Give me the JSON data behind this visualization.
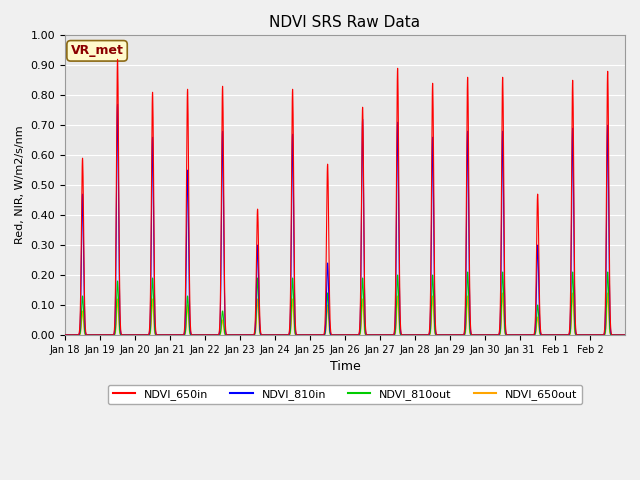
{
  "title": "NDVI SRS Raw Data",
  "xlabel": "Time",
  "ylabel": "Red, NIR, W/m2/s/nm",
  "ylim": [
    0.0,
    1.0
  ],
  "yticks": [
    0.0,
    0.1,
    0.2,
    0.3,
    0.4,
    0.5,
    0.6,
    0.7,
    0.8,
    0.9,
    1.0
  ],
  "xtick_labels": [
    "Jan 18",
    "Jan 19",
    "Jan 20",
    "Jan 21",
    "Jan 22",
    "Jan 23",
    "Jan 24",
    "Jan 25",
    "Jan 26",
    "Jan 27",
    "Jan 28",
    "Jan 29",
    "Jan 30",
    "Jan 31",
    "Feb 1",
    "Feb 2"
  ],
  "annotation_text": "VR_met",
  "annotation_color": "#8B0000",
  "annotation_bg": "#FFFACD",
  "annotation_border": "#8B6914",
  "series_colors": {
    "NDVI_650in": "#FF0000",
    "NDVI_810in": "#0000FF",
    "NDVI_810out": "#00CC00",
    "NDVI_650out": "#FFA500"
  },
  "series_names": [
    "NDVI_650in",
    "NDVI_810in",
    "NDVI_810out",
    "NDVI_650out"
  ],
  "background_color": "#E8E8E8",
  "figure_bg": "#F0F0F0",
  "peak_650in": [
    0.59,
    0.92,
    0.81,
    0.82,
    0.83,
    0.42,
    0.82,
    0.57,
    0.76,
    0.89,
    0.84,
    0.86,
    0.86,
    0.47,
    0.85,
    0.88
  ],
  "peak_810in": [
    0.47,
    0.77,
    0.66,
    0.55,
    0.68,
    0.3,
    0.67,
    0.24,
    0.72,
    0.71,
    0.66,
    0.68,
    0.68,
    0.3,
    0.69,
    0.7
  ],
  "peak_810out": [
    0.13,
    0.18,
    0.19,
    0.13,
    0.08,
    0.19,
    0.19,
    0.14,
    0.19,
    0.2,
    0.2,
    0.21,
    0.21,
    0.1,
    0.21,
    0.21
  ],
  "peak_650out": [
    0.08,
    0.12,
    0.12,
    0.1,
    0.05,
    0.12,
    0.12,
    0.1,
    0.12,
    0.13,
    0.13,
    0.13,
    0.14,
    0.06,
    0.14,
    0.14
  ],
  "n_days": 16,
  "pts_per_day": 200
}
